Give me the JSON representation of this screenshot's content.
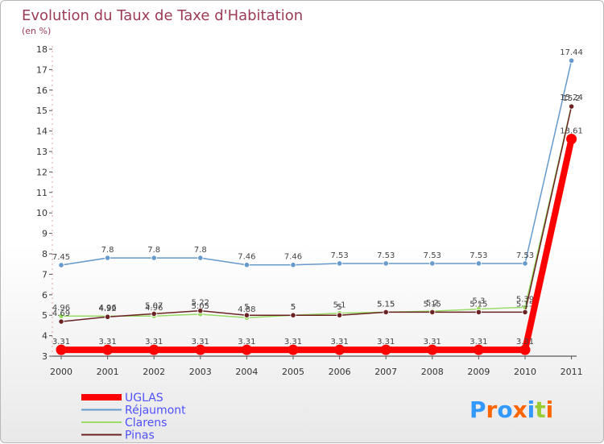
{
  "chart_data": {
    "type": "line",
    "title": "Evolution du Taux de Taxe d'Habitation",
    "subtitle": "(en %)",
    "x": [
      "2000",
      "2001",
      "2002",
      "2003",
      "2004",
      "2005",
      "2006",
      "2007",
      "2008",
      "2009",
      "2010",
      "2011"
    ],
    "ylim": [
      3,
      18
    ],
    "yticks": [
      3,
      4,
      5,
      6,
      7,
      8,
      9,
      10,
      11,
      12,
      13,
      14,
      15,
      16,
      17,
      18
    ],
    "grid": false,
    "legend_position": "bottom-left",
    "series": [
      {
        "name": "UGLAS",
        "color": "#ff0000",
        "values": [
          3.31,
          3.31,
          3.31,
          3.31,
          3.31,
          3.31,
          3.31,
          3.31,
          3.31,
          3.31,
          3.31,
          13.61
        ],
        "labels": [
          "3.31",
          "3.31",
          "3.31",
          "3.31",
          "3.31",
          "3.31",
          "3.31",
          "3.31",
          "3.31",
          "3.31",
          "3.31",
          "13.61"
        ]
      },
      {
        "name": "Réjaumont",
        "color": "#6699cc",
        "values": [
          7.45,
          7.8,
          7.8,
          7.8,
          7.46,
          7.46,
          7.53,
          7.53,
          7.53,
          7.53,
          7.53,
          17.44
        ],
        "labels": [
          "7.45",
          "7.8",
          "7.8",
          "7.8",
          "7.46",
          "7.46",
          "7.53",
          "7.53",
          "7.53",
          "7.53",
          "7.53",
          "17.44"
        ]
      },
      {
        "name": "Clarens",
        "color": "#99dd66",
        "values": [
          4.96,
          4.96,
          4.96,
          5.05,
          4.88,
          5.0,
          5.1,
          5.15,
          5.2,
          5.3,
          5.39,
          15.24
        ],
        "labels": [
          "4.96",
          "4.96",
          "4.96",
          "5.05",
          "4.88",
          "5",
          "5.1",
          "5.15",
          "5.2",
          "5.3",
          "5.39",
          "15.24"
        ]
      },
      {
        "name": "Pinas",
        "color": "#6b2222",
        "values": [
          4.69,
          4.92,
          5.07,
          5.22,
          5.0,
          5.0,
          5.0,
          5.15,
          5.15,
          5.15,
          5.15,
          15.2
        ],
        "labels": [
          "4.69",
          "4.92",
          "5.07",
          "5.22",
          "5",
          "5",
          "5",
          "5.15",
          "5.15",
          "5.15",
          "5.15",
          "15.2"
        ]
      }
    ]
  },
  "brand": {
    "text": "Proxiti",
    "letter_colors": [
      "#3399ff",
      "#ff6600",
      "#3399ff",
      "#ff6600",
      "#3399ff",
      "#99cc33",
      "#ff6600"
    ]
  }
}
